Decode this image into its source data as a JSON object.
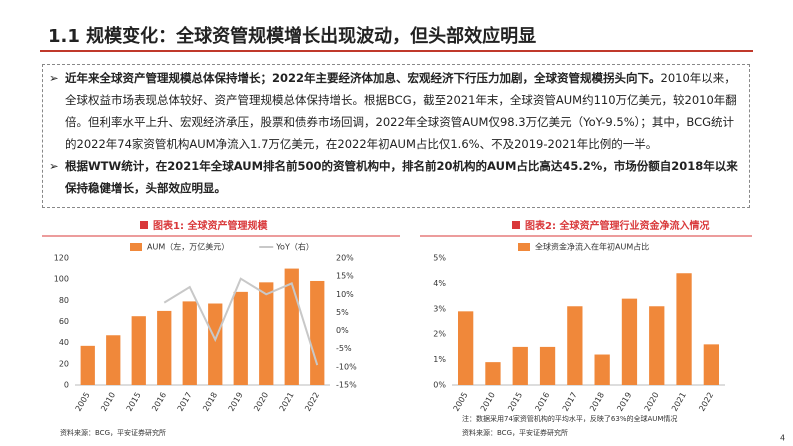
{
  "header": {
    "title": "1.1 规模变化：全球资管规模增长出现波动，但头部效应明显"
  },
  "bullets": [
    {
      "bold": "近年来全球资产管理规模总体保持增长；2022年主要经济体加息、宏观经济下行压力加剧，全球资管规模拐头向下。",
      "text": "2010年以来，全球权益市场表现总体较好、资产管理规模总体保持增长。根据BCG，截至2021年末，全球资管AUM约110万亿美元，较2010年翻倍。但利率水平上升、宏观经济承压，股票和债券市场回调，2022年全球资管AUM仅98.3万亿美元（YoY-9.5%）；其中，BCG统计的2022年74家资管机构AUM净流入1.7万亿美元，在2022年初AUM占比仅1.6%、不及2019-2021年比例的一半。"
    },
    {
      "bold": "根据WTW统计，在2021年全球AUM排名前500的资管机构中，排名前20机构的AUM占比高达45.2%，市场份额自2018年以来保持稳健增长，头部效应明显。"
    }
  ],
  "chart_data": [
    {
      "type": "combo",
      "title": "图表1: 全球资产管理规模",
      "source": "资料来源：BCG，平安证券研究所",
      "categories": [
        "2005",
        "2010",
        "2015",
        "2016",
        "2017",
        "2018",
        "2019",
        "2020",
        "2021",
        "2022"
      ],
      "series": [
        {
          "name": "AUM（左，万亿美元）",
          "type": "bar",
          "color": "#f0883a",
          "values": [
            37,
            47,
            65,
            70,
            79,
            77,
            88,
            97,
            110,
            98.3
          ]
        },
        {
          "name": "YoY（右）",
          "type": "line",
          "axis": "y2",
          "color": "#c8c8c8",
          "values": [
            null,
            null,
            null,
            7.7,
            12,
            -2.5,
            14.3,
            10,
            13,
            -9.5
          ]
        }
      ],
      "ylim": [
        0,
        120
      ],
      "yticks": [
        0,
        20,
        40,
        60,
        80,
        100,
        120
      ],
      "y2lim": [
        -15,
        20
      ],
      "y2ticks": [
        {
          "value": -15,
          "label": "-15%"
        },
        {
          "value": -10,
          "label": "-10%"
        },
        {
          "value": -5,
          "label": "-5%"
        },
        {
          "value": 0,
          "label": "0%"
        },
        {
          "value": 5,
          "label": "5%"
        },
        {
          "value": 10,
          "label": "10%"
        },
        {
          "value": 15,
          "label": "15%"
        },
        {
          "value": 20,
          "label": "20%"
        }
      ]
    },
    {
      "type": "bar",
      "title": "图表2: 全球资产管理行业资金净流入情况",
      "note": "注：数据采用74家资管机构的平均水平，反映了63%的全球AUM情况",
      "source": "资料来源：BCG，平安证券研究所",
      "categories": [
        "2005",
        "2010",
        "2015",
        "2016",
        "2017",
        "2018",
        "2019",
        "2020",
        "2021",
        "2022"
      ],
      "series": [
        {
          "name": "全球资金净流入在年初AUM占比",
          "type": "bar",
          "color": "#f0883a",
          "values": [
            2.9,
            0.9,
            1.5,
            1.5,
            3.1,
            1.2,
            3.4,
            3.1,
            4.4,
            1.6
          ]
        }
      ],
      "ylim": [
        0,
        5
      ],
      "yticks": [
        {
          "value": 0,
          "label": "0%"
        },
        {
          "value": 1,
          "label": "1%"
        },
        {
          "value": 2,
          "label": "2%"
        },
        {
          "value": 3,
          "label": "3%"
        },
        {
          "value": 4,
          "label": "4%"
        },
        {
          "value": 5,
          "label": "5%"
        }
      ]
    }
  ],
  "page_number": 4
}
